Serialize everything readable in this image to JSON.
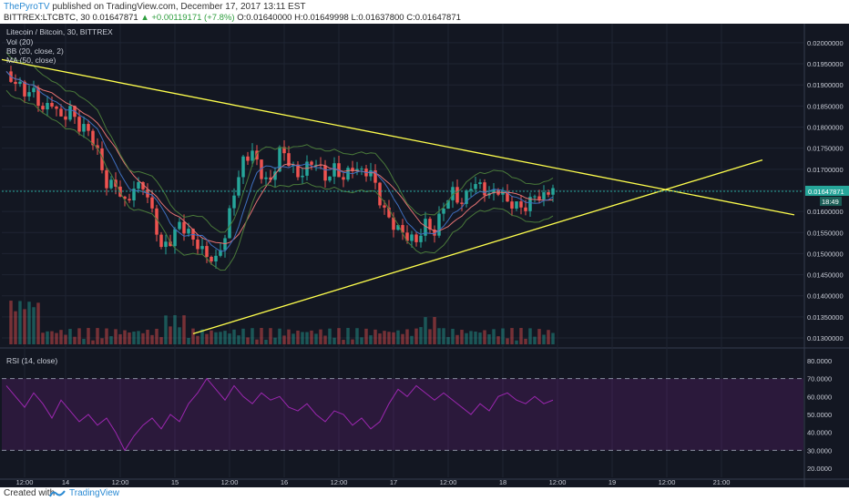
{
  "header": {
    "author": "ThePyroTV",
    "published": "published on TradingView.com, December 17, 2017 13:11 EST",
    "symbol_line": "BITTREX:LTCBTC, 30",
    "last": "0.01647871",
    "change": "▲ +0.00119171 (+7.8%)",
    "ohlc_o": "O:0.01640000",
    "ohlc_h": "H:0.01649998",
    "ohlc_l": "L:0.01637800",
    "ohlc_c": "C:0.01647871"
  },
  "legend": {
    "title": "Litecoin / Bitcoin, 30, BITTREX",
    "vol": "Vol (20)",
    "bb": "BB (20, close, 2)",
    "ma": "MA (50, close)",
    "rsi": "RSI (14, close)"
  },
  "footer": {
    "created": "Created with",
    "brand": "TradingView"
  },
  "colors": {
    "background": "#131722",
    "up": "#26a69a",
    "down": "#ef5350",
    "trendline": "#ffff4d",
    "rsi": "#9c27b0",
    "price_tag": "#26a69a"
  },
  "chart_data": [
    {
      "type": "candlestick",
      "title": "Litecoin / Bitcoin, 30, BITTREX",
      "y_ticks": [
        "0.02000000",
        "0.01950000",
        "0.01900000",
        "0.01850000",
        "0.01800000",
        "0.01750000",
        "0.01700000",
        "0.01650000",
        "0.01600000",
        "0.01550000",
        "0.01500000",
        "0.01450000",
        "0.01400000",
        "0.01350000",
        "0.01300000"
      ],
      "ylim": [
        0.01285,
        0.0203
      ],
      "x_ticks": [
        "12:00",
        "14",
        "12:00",
        "15",
        "12:00",
        "16",
        "12:00",
        "17",
        "12:00",
        "18",
        "12:00",
        "19",
        "12:00",
        "21:00"
      ],
      "last_price_label": "0.01647871",
      "countdown_label": "18:49",
      "close_path": [
        [
          0,
          0.0192
        ],
        [
          2,
          0.0189
        ],
        [
          4,
          0.0186
        ],
        [
          6,
          0.0187
        ],
        [
          8,
          0.01845
        ],
        [
          10,
          0.0188
        ],
        [
          12,
          0.0184
        ],
        [
          14,
          0.0185
        ],
        [
          16,
          0.0179
        ],
        [
          18,
          0.0177
        ],
        [
          20,
          0.0172
        ],
        [
          22,
          0.0166
        ],
        [
          24,
          0.0168
        ],
        [
          26,
          0.0164
        ],
        [
          28,
          0.0167
        ],
        [
          30,
          0.0166
        ],
        [
          32,
          0.0158
        ],
        [
          34,
          0.0149
        ],
        [
          36,
          0.0152
        ],
        [
          38,
          0.0158
        ],
        [
          40,
          0.0157
        ],
        [
          42,
          0.0154
        ],
        [
          44,
          0.015
        ],
        [
          46,
          0.0147
        ],
        [
          48,
          0.0152
        ],
        [
          50,
          0.0163
        ],
        [
          52,
          0.0172
        ],
        [
          54,
          0.0176
        ],
        [
          56,
          0.0171
        ],
        [
          58,
          0.0168
        ],
        [
          60,
          0.0174
        ],
        [
          62,
          0.017
        ],
        [
          64,
          0.0166
        ],
        [
          66,
          0.017
        ],
        [
          68,
          0.0173
        ],
        [
          70,
          0.017
        ],
        [
          72,
          0.0172
        ],
        [
          74,
          0.0168
        ],
        [
          76,
          0.0169
        ],
        [
          78,
          0.0167
        ],
        [
          80,
          0.0168
        ],
        [
          82,
          0.0163
        ],
        [
          84,
          0.016
        ],
        [
          86,
          0.0158
        ],
        [
          88,
          0.0155
        ],
        [
          90,
          0.0152
        ],
        [
          92,
          0.0155
        ],
        [
          94,
          0.0153
        ],
        [
          96,
          0.0161
        ],
        [
          98,
          0.0166
        ],
        [
          100,
          0.0164
        ],
        [
          102,
          0.0168
        ],
        [
          104,
          0.0166
        ],
        [
          106,
          0.0162
        ],
        [
          108,
          0.0163
        ],
        [
          110,
          0.0161
        ],
        [
          112,
          0.0162
        ],
        [
          114,
          0.0163
        ],
        [
          116,
          0.0166
        ],
        [
          118,
          0.0164
        ],
        [
          120,
          0.016479
        ]
      ],
      "trendlines": [
        {
          "name": "descending-resistance",
          "x": [
            0,
            174
          ],
          "y": [
            0.0196,
            0.01592
          ]
        },
        {
          "name": "ascending-support",
          "x": [
            42,
            167
          ],
          "y": [
            0.0131,
            0.01722
          ]
        }
      ],
      "volume": {
        "label": "Vol (20)"
      },
      "bands": {
        "label": "BB (20, close, 2)"
      },
      "moving_average": {
        "label": "MA (50, close)"
      }
    },
    {
      "type": "line",
      "title": "RSI (14, close)",
      "y_ticks": [
        "80.0000",
        "70.0000",
        "60.0000",
        "50.0000",
        "40.0000",
        "30.0000",
        "20.0000"
      ],
      "ylim": [
        15,
        85
      ],
      "levels": [
        70,
        30
      ],
      "values": [
        66,
        60,
        54,
        62,
        56,
        48,
        58,
        52,
        46,
        50,
        44,
        48,
        40,
        30,
        38,
        44,
        48,
        42,
        50,
        46,
        56,
        62,
        70,
        64,
        58,
        66,
        60,
        56,
        62,
        58,
        60,
        54,
        52,
        56,
        50,
        46,
        52,
        50,
        44,
        48,
        42,
        46,
        56,
        64,
        60,
        66,
        62,
        58,
        62,
        58,
        54,
        50,
        56,
        52,
        60,
        62,
        58,
        56,
        60,
        56,
        58
      ]
    }
  ]
}
